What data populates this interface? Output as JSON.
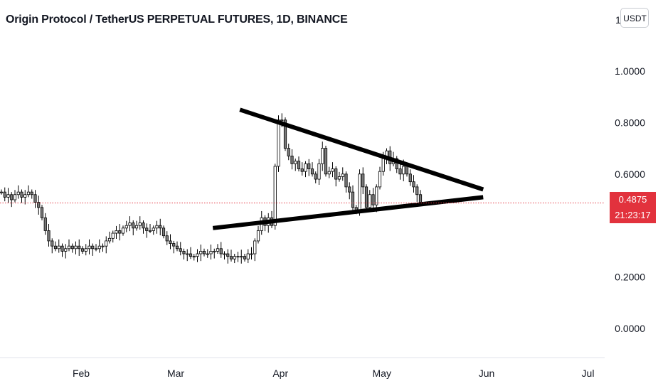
{
  "header": {
    "symbol": "Origin Protocol / TetherUS PERPETUAL FUTURES",
    "interval": "1D",
    "exchange": "BINANCE",
    "separator": ", "
  },
  "toolbar": {
    "currency_label": "USDT",
    "axis_top_partial": "1"
  },
  "colors": {
    "candle_body": "#ffffff",
    "candle_outline": "#000000",
    "trendline": "#000000",
    "price_line": "#e2323d",
    "price_label_bg": "#e2323d"
  },
  "last_price": {
    "value": 0.4875,
    "label": "0.4875",
    "countdown": "21:23:17"
  },
  "chart_data": {
    "type": "candlestick",
    "title": "",
    "y_axis": {
      "ticks": [
        1.0,
        0.8,
        0.6,
        0.2,
        0.0
      ],
      "tick_labels": [
        "1.0000",
        "0.8000",
        "0.6000",
        "0.2000",
        "0.0000"
      ],
      "range": [
        -0.05,
        1.22
      ],
      "position": "right"
    },
    "x_axis": {
      "tick_labels": [
        "Feb",
        "Mar",
        "Apr",
        "May",
        "Jun",
        "Jul"
      ],
      "tick_dates": [
        "2022-02-01",
        "2022-03-01",
        "2022-04-01",
        "2022-05-01",
        "2022-06-01",
        "2022-07-01"
      ],
      "range": [
        "2022-01-08",
        "2022-07-19"
      ]
    },
    "grid": false,
    "ohlc_closes": [
      0.53,
      0.51,
      0.52,
      0.5,
      0.52,
      0.53,
      0.51,
      0.52,
      0.53,
      0.52,
      0.49,
      0.47,
      0.43,
      0.38,
      0.34,
      0.32,
      0.31,
      0.32,
      0.3,
      0.31,
      0.32,
      0.31,
      0.32,
      0.31,
      0.3,
      0.31,
      0.32,
      0.31,
      0.31,
      0.32,
      0.32,
      0.34,
      0.35,
      0.37,
      0.38,
      0.37,
      0.39,
      0.4,
      0.41,
      0.39,
      0.4,
      0.41,
      0.39,
      0.38,
      0.38,
      0.39,
      0.4,
      0.39,
      0.36,
      0.34,
      0.33,
      0.32,
      0.31,
      0.3,
      0.29,
      0.29,
      0.28,
      0.28,
      0.29,
      0.3,
      0.29,
      0.29,
      0.3,
      0.3,
      0.31,
      0.29,
      0.29,
      0.28,
      0.27,
      0.28,
      0.28,
      0.28,
      0.27,
      0.29,
      0.29,
      0.34,
      0.38,
      0.43,
      0.4,
      0.43,
      0.4,
      0.63,
      0.81,
      0.81,
      0.7,
      0.67,
      0.64,
      0.65,
      0.62,
      0.61,
      0.64,
      0.62,
      0.6,
      0.58,
      0.64,
      0.7,
      0.6,
      0.61,
      0.62,
      0.58,
      0.59,
      0.6,
      0.55,
      0.53,
      0.47,
      0.46,
      0.6,
      0.55,
      0.47,
      0.52,
      0.48,
      0.55,
      0.61,
      0.66,
      0.69,
      0.64,
      0.66,
      0.62,
      0.6,
      0.63,
      0.6,
      0.57,
      0.55,
      0.52,
      0.49
    ],
    "trendlines": [
      {
        "name": "upper",
        "start": {
          "date": "2022-03-20",
          "price": 0.85
        },
        "end": {
          "date": "2022-05-31",
          "price": 0.54
        }
      },
      {
        "name": "lower",
        "start": {
          "date": "2022-03-12",
          "price": 0.39
        },
        "end": {
          "date": "2022-05-31",
          "price": 0.51
        }
      }
    ]
  }
}
